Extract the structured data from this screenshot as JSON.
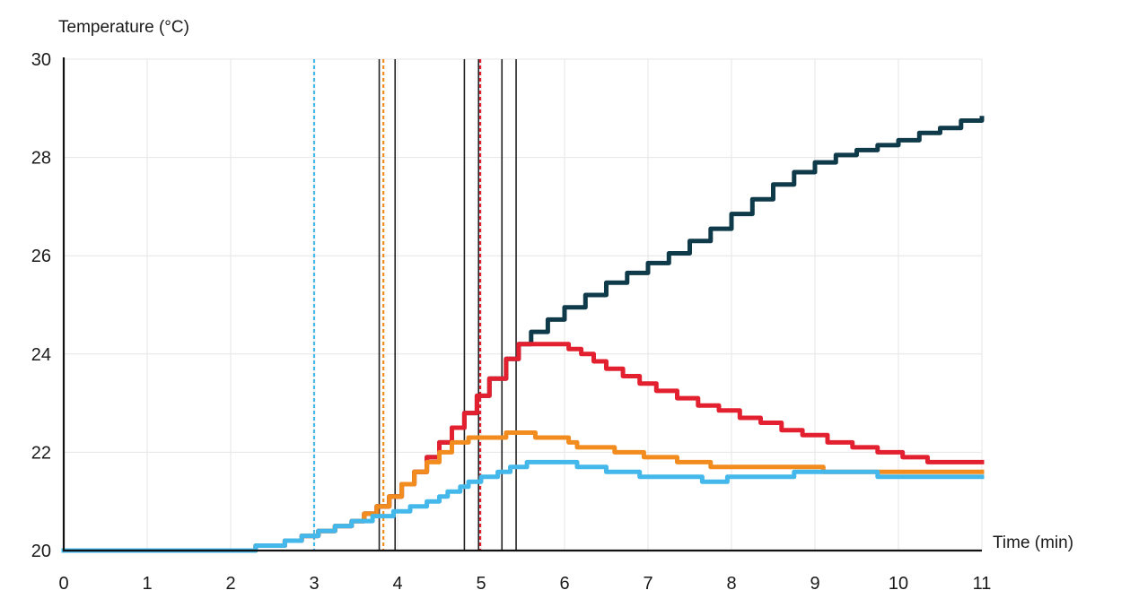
{
  "chart_data": {
    "type": "line",
    "title": "",
    "xlabel": "Time (min)",
    "ylabel": "Temperature (°C)",
    "xlim": [
      0,
      11
    ],
    "ylim": [
      20,
      30
    ],
    "x_ticks": [
      0,
      1,
      2,
      3,
      4,
      5,
      6,
      7,
      8,
      9,
      10,
      11
    ],
    "y_ticks": [
      20,
      22,
      24,
      26,
      28,
      30
    ],
    "grid": true,
    "legend": "none",
    "step": true,
    "series": [
      {
        "color": "#0e3a4a",
        "points": [
          [
            0,
            20
          ],
          [
            2.25,
            20
          ],
          [
            2.3,
            20.1
          ],
          [
            2.6,
            20.1
          ],
          [
            2.65,
            20.2
          ],
          [
            2.85,
            20.3
          ],
          [
            3.05,
            20.4
          ],
          [
            3.25,
            20.5
          ],
          [
            3.45,
            20.6
          ],
          [
            3.6,
            20.75
          ],
          [
            3.75,
            20.9
          ],
          [
            3.9,
            21.1
          ],
          [
            4.05,
            21.35
          ],
          [
            4.2,
            21.6
          ],
          [
            4.35,
            21.9
          ],
          [
            4.5,
            22.2
          ],
          [
            4.65,
            22.5
          ],
          [
            4.8,
            22.8
          ],
          [
            4.95,
            23.15
          ],
          [
            5.1,
            23.5
          ],
          [
            5.3,
            23.9
          ],
          [
            5.45,
            24.2
          ],
          [
            5.6,
            24.45
          ],
          [
            5.8,
            24.7
          ],
          [
            6.0,
            24.95
          ],
          [
            6.25,
            25.2
          ],
          [
            6.5,
            25.45
          ],
          [
            6.75,
            25.65
          ],
          [
            7.0,
            25.85
          ],
          [
            7.25,
            26.05
          ],
          [
            7.5,
            26.3
          ],
          [
            7.75,
            26.55
          ],
          [
            8.0,
            26.85
          ],
          [
            8.25,
            27.15
          ],
          [
            8.5,
            27.45
          ],
          [
            8.75,
            27.7
          ],
          [
            9.0,
            27.9
          ],
          [
            9.25,
            28.05
          ],
          [
            9.5,
            28.15
          ],
          [
            9.75,
            28.25
          ],
          [
            10.0,
            28.35
          ],
          [
            10.25,
            28.5
          ],
          [
            10.5,
            28.6
          ],
          [
            10.75,
            28.75
          ],
          [
            11.0,
            28.8
          ]
        ]
      },
      {
        "color": "#e3202f",
        "points": [
          [
            0,
            20
          ],
          [
            2.25,
            20
          ],
          [
            2.3,
            20.1
          ],
          [
            2.6,
            20.1
          ],
          [
            2.65,
            20.2
          ],
          [
            2.85,
            20.3
          ],
          [
            3.05,
            20.4
          ],
          [
            3.25,
            20.5
          ],
          [
            3.45,
            20.6
          ],
          [
            3.6,
            20.75
          ],
          [
            3.75,
            20.9
          ],
          [
            3.9,
            21.1
          ],
          [
            4.05,
            21.35
          ],
          [
            4.2,
            21.6
          ],
          [
            4.35,
            21.9
          ],
          [
            4.5,
            22.2
          ],
          [
            4.65,
            22.5
          ],
          [
            4.8,
            22.8
          ],
          [
            4.95,
            23.15
          ],
          [
            5.1,
            23.5
          ],
          [
            5.3,
            23.9
          ],
          [
            5.45,
            24.2
          ],
          [
            5.9,
            24.2
          ],
          [
            6.05,
            24.1
          ],
          [
            6.2,
            24.0
          ],
          [
            6.35,
            23.85
          ],
          [
            6.5,
            23.7
          ],
          [
            6.7,
            23.55
          ],
          [
            6.9,
            23.4
          ],
          [
            7.1,
            23.25
          ],
          [
            7.35,
            23.1
          ],
          [
            7.6,
            22.95
          ],
          [
            7.85,
            22.85
          ],
          [
            8.1,
            22.7
          ],
          [
            8.35,
            22.6
          ],
          [
            8.6,
            22.45
          ],
          [
            8.85,
            22.35
          ],
          [
            9.15,
            22.2
          ],
          [
            9.45,
            22.1
          ],
          [
            9.75,
            22.0
          ],
          [
            10.05,
            21.9
          ],
          [
            10.35,
            21.8
          ],
          [
            11.0,
            21.8
          ]
        ]
      },
      {
        "color": "#f28c1e",
        "points": [
          [
            0,
            20
          ],
          [
            2.25,
            20
          ],
          [
            2.3,
            20.1
          ],
          [
            2.6,
            20.1
          ],
          [
            2.65,
            20.2
          ],
          [
            2.85,
            20.3
          ],
          [
            3.05,
            20.4
          ],
          [
            3.25,
            20.5
          ],
          [
            3.45,
            20.6
          ],
          [
            3.6,
            20.75
          ],
          [
            3.75,
            20.9
          ],
          [
            3.9,
            21.1
          ],
          [
            4.05,
            21.35
          ],
          [
            4.2,
            21.6
          ],
          [
            4.35,
            21.8
          ],
          [
            4.5,
            22.0
          ],
          [
            4.65,
            22.2
          ],
          [
            4.85,
            22.3
          ],
          [
            5.2,
            22.3
          ],
          [
            5.3,
            22.4
          ],
          [
            5.6,
            22.4
          ],
          [
            5.65,
            22.3
          ],
          [
            5.95,
            22.3
          ],
          [
            6.05,
            22.2
          ],
          [
            6.15,
            22.1
          ],
          [
            6.5,
            22.1
          ],
          [
            6.6,
            22.0
          ],
          [
            6.85,
            22.0
          ],
          [
            6.95,
            21.9
          ],
          [
            7.25,
            21.9
          ],
          [
            7.35,
            21.8
          ],
          [
            7.65,
            21.8
          ],
          [
            7.75,
            21.7
          ],
          [
            9.05,
            21.7
          ],
          [
            9.1,
            21.6
          ],
          [
            11.0,
            21.6
          ]
        ]
      },
      {
        "color": "#44b8ea",
        "points": [
          [
            0,
            20
          ],
          [
            2.25,
            20
          ],
          [
            2.3,
            20.1
          ],
          [
            2.6,
            20.1
          ],
          [
            2.65,
            20.2
          ],
          [
            2.85,
            20.3
          ],
          [
            3.05,
            20.4
          ],
          [
            3.25,
            20.5
          ],
          [
            3.45,
            20.6
          ],
          [
            3.7,
            20.7
          ],
          [
            3.95,
            20.8
          ],
          [
            4.15,
            20.9
          ],
          [
            4.35,
            21.0
          ],
          [
            4.5,
            21.1
          ],
          [
            4.6,
            21.2
          ],
          [
            4.75,
            21.3
          ],
          [
            4.85,
            21.4
          ],
          [
            5.0,
            21.5
          ],
          [
            5.2,
            21.6
          ],
          [
            5.35,
            21.7
          ],
          [
            5.5,
            21.7
          ],
          [
            5.55,
            21.8
          ],
          [
            6.1,
            21.8
          ],
          [
            6.15,
            21.7
          ],
          [
            6.45,
            21.7
          ],
          [
            6.5,
            21.6
          ],
          [
            6.85,
            21.6
          ],
          [
            6.9,
            21.5
          ],
          [
            7.6,
            21.5
          ],
          [
            7.65,
            21.4
          ],
          [
            7.9,
            21.4
          ],
          [
            7.95,
            21.5
          ],
          [
            8.7,
            21.5
          ],
          [
            8.75,
            21.6
          ],
          [
            9.7,
            21.6
          ],
          [
            9.75,
            21.5
          ],
          [
            11.0,
            21.5
          ]
        ]
      }
    ],
    "vertical_markers": [
      {
        "x": 3.0,
        "style": "dashed",
        "color": "#44b8ea"
      },
      {
        "x": 3.78,
        "style": "solid",
        "color": "#222222"
      },
      {
        "x": 3.83,
        "style": "dashed",
        "color": "#f28c1e"
      },
      {
        "x": 3.97,
        "style": "solid",
        "color": "#222222"
      },
      {
        "x": 4.8,
        "style": "solid",
        "color": "#222222"
      },
      {
        "x": 4.97,
        "style": "solid",
        "color": "#222222"
      },
      {
        "x": 4.99,
        "style": "dashed",
        "color": "#e3202f"
      },
      {
        "x": 5.25,
        "style": "solid",
        "color": "#222222"
      },
      {
        "x": 5.42,
        "style": "solid",
        "color": "#222222"
      }
    ]
  }
}
